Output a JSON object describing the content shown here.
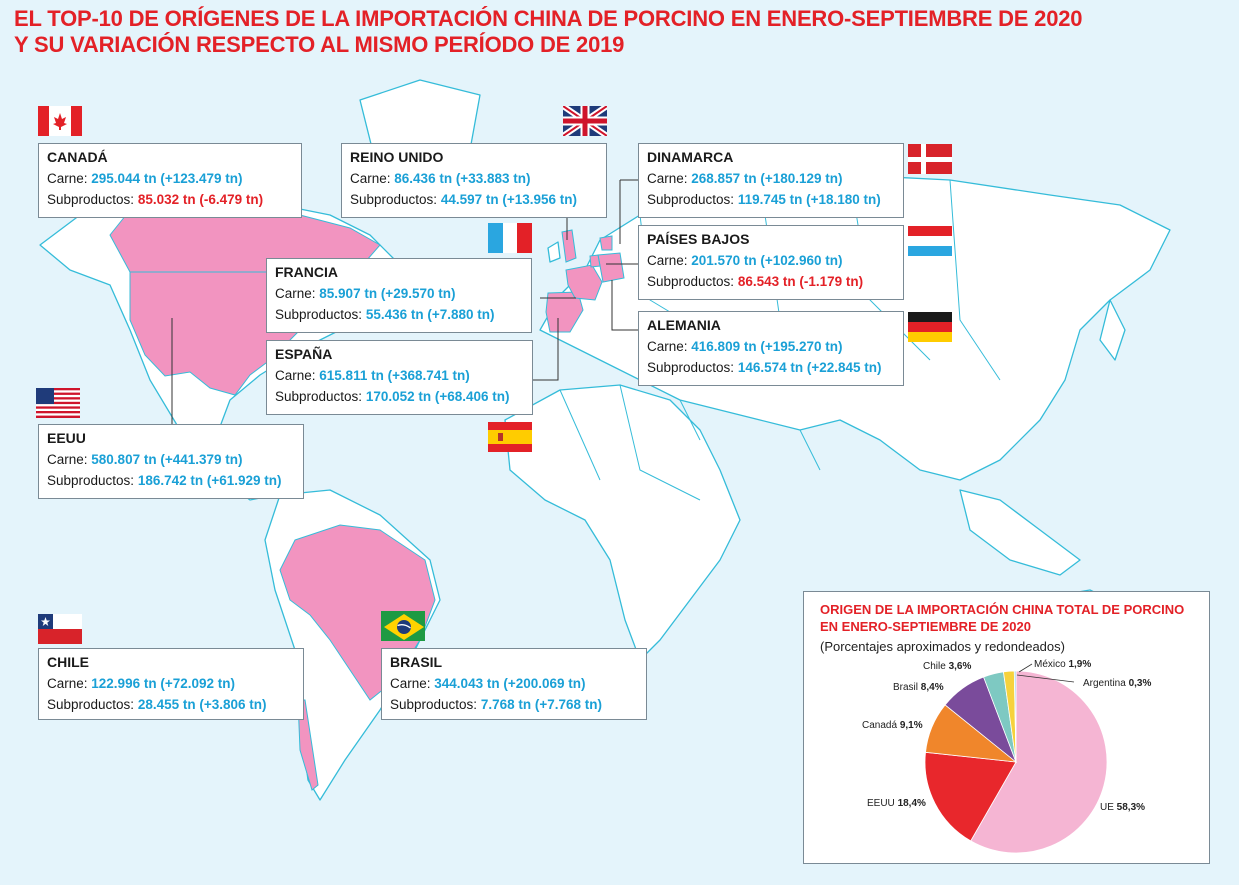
{
  "title": {
    "line1": "EL TOP-10 DE ORÍGENES DE LA IMPORTACIÓN CHINA DE PORCINO EN ENERO-SEPTIEMBRE DE 2020",
    "line2": "Y SU VARIACIÓN RESPECTO AL MISMO PERÍODO DE 2019"
  },
  "labels": {
    "carne": "Carne: ",
    "sub": "Subproductos: "
  },
  "colors": {
    "title_red": "#e32127",
    "value_blue": "#1aa0d6",
    "map_highlight": "#f294c0",
    "ocean": "#e4f4fb",
    "land_stroke": "#35bcd9"
  },
  "countries": {
    "canada": {
      "name": "CANADÁ",
      "carne": "295.044 tn (+123.479 tn)",
      "sub": "85.032 tn (-6.479 tn)",
      "sub_trend": "neg",
      "flag": "canada-flag"
    },
    "uk": {
      "name": "REINO UNIDO",
      "carne": "86.436 tn (+33.883 tn)",
      "sub": "44.597 tn (+13.956 tn)",
      "flag": "uk-flag"
    },
    "denmark": {
      "name": "DINAMARCA",
      "carne": "268.857 tn (+180.129 tn)",
      "sub": "119.745 tn (+18.180 tn)",
      "flag": "denmark-flag"
    },
    "netherlands": {
      "name": "PAÍSES BAJOS",
      "carne": "201.570 tn (+102.960 tn)",
      "sub": "86.543 tn (-1.179 tn)",
      "sub_trend": "neg",
      "flag": "netherlands-flag"
    },
    "france": {
      "name": "FRANCIA",
      "carne": "85.907 tn (+29.570 tn)",
      "sub": "55.436 tn (+7.880 tn)",
      "flag": "france-flag"
    },
    "germany": {
      "name": "ALEMANIA",
      "carne": "416.809 tn (+195.270 tn)",
      "sub": "146.574 tn (+22.845 tn)",
      "flag": "germany-flag"
    },
    "spain": {
      "name": "ESPAÑA",
      "carne": "615.811 tn (+368.741 tn)",
      "sub": "170.052 tn (+68.406 tn)",
      "flag": "spain-flag"
    },
    "usa": {
      "name": "EEUU",
      "carne": "580.807 tn (+441.379 tn)",
      "sub": "186.742 tn (+61.929 tn)",
      "flag": "usa-flag"
    },
    "chile": {
      "name": "CHILE",
      "carne": "122.996 tn (+72.092 tn)",
      "sub": "28.455 tn (+3.806 tn)",
      "flag": "chile-flag"
    },
    "brazil": {
      "name": "BRASIL",
      "carne": "344.043 tn (+200.069 tn)",
      "sub": "7.768 tn (+7.768 tn)",
      "flag": "brazil-flag"
    }
  },
  "pie": {
    "title_line1": "ORIGEN DE LA IMPORTACIÓN CHINA TOTAL DE PORCINO",
    "title_line2": "EN ENERO-SEPTIEMBRE DE 2020",
    "subtitle": "(Porcentajes aproximados y redondeados)"
  },
  "chart_data": {
    "type": "pie",
    "title": "ORIGEN DE LA IMPORTACIÓN CHINA TOTAL DE PORCINO EN ENERO-SEPTIEMBRE DE 2020",
    "subtitle": "(Porcentajes aproximados y redondeados)",
    "unit": "%",
    "slices": [
      {
        "label": "UE",
        "value": 58.3,
        "text": "58,3%",
        "color": "#f5b5d3"
      },
      {
        "label": "EEUU",
        "value": 18.4,
        "text": "18,4%",
        "color": "#e8272c"
      },
      {
        "label": "Canadá",
        "value": 9.1,
        "text": "9,1%",
        "color": "#f0862b"
      },
      {
        "label": "Brasil",
        "value": 8.4,
        "text": "8,4%",
        "color": "#7a4b9b"
      },
      {
        "label": "Chile",
        "value": 3.6,
        "text": "3,6%",
        "color": "#7ec9c2"
      },
      {
        "label": "México",
        "value": 1.9,
        "text": "1,9%",
        "color": "#f6d23c"
      },
      {
        "label": "Argentina",
        "value": 0.3,
        "text": "0,3%",
        "color": "#9ad3e8"
      }
    ]
  }
}
